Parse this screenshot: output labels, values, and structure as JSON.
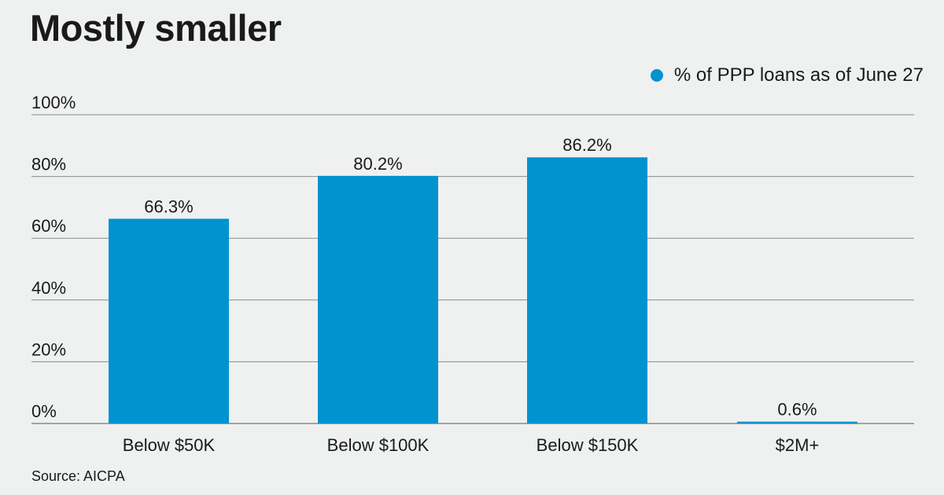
{
  "chart_data": {
    "type": "bar",
    "title": "Mostly smaller",
    "categories": [
      "Below $50K",
      "Below $100K",
      "Below $150K",
      "$2M+"
    ],
    "series": [
      {
        "name": "% of PPP loans as of June 27",
        "values": [
          66.3,
          80.2,
          86.2,
          0.6
        ]
      }
    ],
    "data_labels": [
      "66.3%",
      "80.2%",
      "86.2%",
      "0.6%"
    ],
    "y_ticks": [
      0,
      20,
      40,
      60,
      80,
      100
    ],
    "y_tick_labels": [
      "0%",
      "20%",
      "40%",
      "60%",
      "80%",
      "100%"
    ],
    "ylim": [
      0,
      100
    ],
    "xlabel": "",
    "ylabel": "",
    "grid": true,
    "legend_position": "top-right",
    "color": "#0093d0"
  },
  "source": "Source: AICPA"
}
